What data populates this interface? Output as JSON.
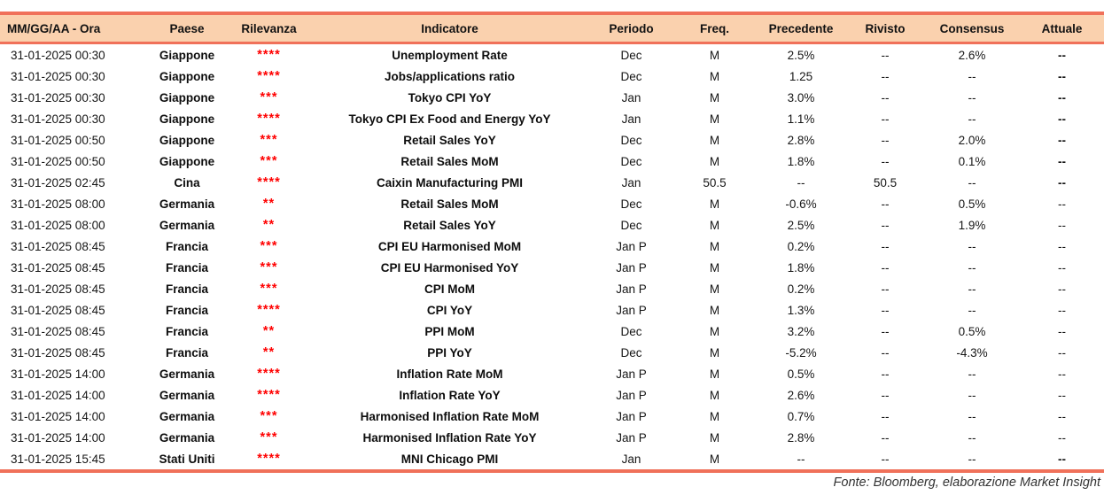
{
  "table": {
    "columns": [
      "MM/GG/AA - Ora",
      "Paese",
      "Rilevanza",
      "Indicatore",
      "Periodo",
      "Freq.",
      "Precedente",
      "Rivisto",
      "Consensus",
      "Attuale"
    ],
    "rows": [
      {
        "datetime": "31-01-2025 00:30",
        "country": "Giappone",
        "relevance": "****",
        "indicator": "Unemployment Rate",
        "period": "Dec",
        "freq": "M",
        "previous": "2.5%",
        "revised": "--",
        "consensus": "2.6%",
        "actual": "--",
        "actual_bold": true
      },
      {
        "datetime": "31-01-2025 00:30",
        "country": "Giappone",
        "relevance": "****",
        "indicator": "Jobs/applications ratio",
        "period": "Dec",
        "freq": "M",
        "previous": "1.25",
        "revised": "--",
        "consensus": "--",
        "actual": "--",
        "actual_bold": true
      },
      {
        "datetime": "31-01-2025 00:30",
        "country": "Giappone",
        "relevance": "***",
        "indicator": "Tokyo CPI YoY",
        "period": "Jan",
        "freq": "M",
        "previous": "3.0%",
        "revised": "--",
        "consensus": "--",
        "actual": "--",
        "actual_bold": true
      },
      {
        "datetime": "31-01-2025 00:30",
        "country": "Giappone",
        "relevance": "****",
        "indicator": "Tokyo CPI Ex Food and Energy YoY",
        "period": "Jan",
        "freq": "M",
        "previous": "1.1%",
        "revised": "--",
        "consensus": "--",
        "actual": "--",
        "actual_bold": true
      },
      {
        "datetime": "31-01-2025 00:50",
        "country": "Giappone",
        "relevance": "***",
        "indicator": "Retail Sales YoY",
        "period": "Dec",
        "freq": "M",
        "previous": "2.8%",
        "revised": "--",
        "consensus": "2.0%",
        "actual": "--",
        "actual_bold": true
      },
      {
        "datetime": "31-01-2025 00:50",
        "country": "Giappone",
        "relevance": "***",
        "indicator": "Retail Sales MoM",
        "period": "Dec",
        "freq": "M",
        "previous": "1.8%",
        "revised": "--",
        "consensus": "0.1%",
        "actual": "--",
        "actual_bold": true
      },
      {
        "datetime": "31-01-2025 02:45",
        "country": "Cina",
        "relevance": "****",
        "indicator": "Caixin Manufacturing PMI",
        "period": "Jan",
        "freq": "50.5",
        "previous": "--",
        "revised": "50.5",
        "consensus": "--",
        "actual": "--",
        "actual_bold": true
      },
      {
        "datetime": "31-01-2025 08:00",
        "country": "Germania",
        "relevance": "**",
        "indicator": "Retail Sales MoM",
        "period": "Dec",
        "freq": "M",
        "previous": "-0.6%",
        "revised": "--",
        "consensus": "0.5%",
        "actual": "--",
        "actual_bold": false
      },
      {
        "datetime": "31-01-2025 08:00",
        "country": "Germania",
        "relevance": "**",
        "indicator": "Retail Sales YoY",
        "period": "Dec",
        "freq": "M",
        "previous": "2.5%",
        "revised": "--",
        "consensus": "1.9%",
        "actual": "--",
        "actual_bold": false
      },
      {
        "datetime": "31-01-2025 08:45",
        "country": "Francia",
        "relevance": "***",
        "indicator": "CPI EU Harmonised MoM",
        "period": "Jan P",
        "freq": "M",
        "previous": "0.2%",
        "revised": "--",
        "consensus": "--",
        "actual": "--",
        "actual_bold": false
      },
      {
        "datetime": "31-01-2025 08:45",
        "country": "Francia",
        "relevance": "***",
        "indicator": "CPI EU Harmonised YoY",
        "period": "Jan P",
        "freq": "M",
        "previous": "1.8%",
        "revised": "--",
        "consensus": "--",
        "actual": "--",
        "actual_bold": false
      },
      {
        "datetime": "31-01-2025 08:45",
        "country": "Francia",
        "relevance": "***",
        "indicator": "CPI MoM",
        "period": "Jan P",
        "freq": "M",
        "previous": "0.2%",
        "revised": "--",
        "consensus": "--",
        "actual": "--",
        "actual_bold": false
      },
      {
        "datetime": "31-01-2025 08:45",
        "country": "Francia",
        "relevance": "****",
        "indicator": "CPI YoY",
        "period": "Jan P",
        "freq": "M",
        "previous": "1.3%",
        "revised": "--",
        "consensus": "--",
        "actual": "--",
        "actual_bold": false
      },
      {
        "datetime": "31-01-2025 08:45",
        "country": "Francia",
        "relevance": "**",
        "indicator": "PPI MoM",
        "period": "Dec",
        "freq": "M",
        "previous": "3.2%",
        "revised": "--",
        "consensus": "0.5%",
        "actual": "--",
        "actual_bold": false
      },
      {
        "datetime": "31-01-2025 08:45",
        "country": "Francia",
        "relevance": "**",
        "indicator": "PPI YoY",
        "period": "Dec",
        "freq": "M",
        "previous": "-5.2%",
        "revised": "--",
        "consensus": "-4.3%",
        "actual": "--",
        "actual_bold": false
      },
      {
        "datetime": "31-01-2025 14:00",
        "country": "Germania",
        "relevance": "****",
        "indicator": "Inflation Rate MoM",
        "period": "Jan P",
        "freq": "M",
        "previous": "0.5%",
        "revised": "--",
        "consensus": "--",
        "actual": "--",
        "actual_bold": false
      },
      {
        "datetime": "31-01-2025 14:00",
        "country": "Germania",
        "relevance": "****",
        "indicator": "Inflation Rate YoY",
        "period": "Jan P",
        "freq": "M",
        "previous": "2.6%",
        "revised": "--",
        "consensus": "--",
        "actual": "--",
        "actual_bold": false
      },
      {
        "datetime": "31-01-2025 14:00",
        "country": "Germania",
        "relevance": "***",
        "indicator": "Harmonised Inflation Rate MoM",
        "period": "Jan P",
        "freq": "M",
        "previous": "0.7%",
        "revised": "--",
        "consensus": "--",
        "actual": "--",
        "actual_bold": false
      },
      {
        "datetime": "31-01-2025 14:00",
        "country": "Germania",
        "relevance": "***",
        "indicator": "Harmonised Inflation Rate YoY",
        "period": "Jan P",
        "freq": "M",
        "previous": "2.8%",
        "revised": "--",
        "consensus": "--",
        "actual": "--",
        "actual_bold": false
      },
      {
        "datetime": "31-01-2025 15:45",
        "country": "Stati Uniti",
        "relevance": "****",
        "indicator": "MNI Chicago PMI",
        "period": "Jan",
        "freq": "M",
        "previous": "--",
        "revised": "--",
        "consensus": "--",
        "actual": "--",
        "actual_bold": true
      }
    ]
  },
  "footer": {
    "source_note": "Fonte: Bloomberg, elaborazione Market Insight"
  },
  "colors": {
    "accent_line": "#F0715A",
    "header_bg": "#FAD1AE",
    "relevance_stars": "#FF0000"
  }
}
